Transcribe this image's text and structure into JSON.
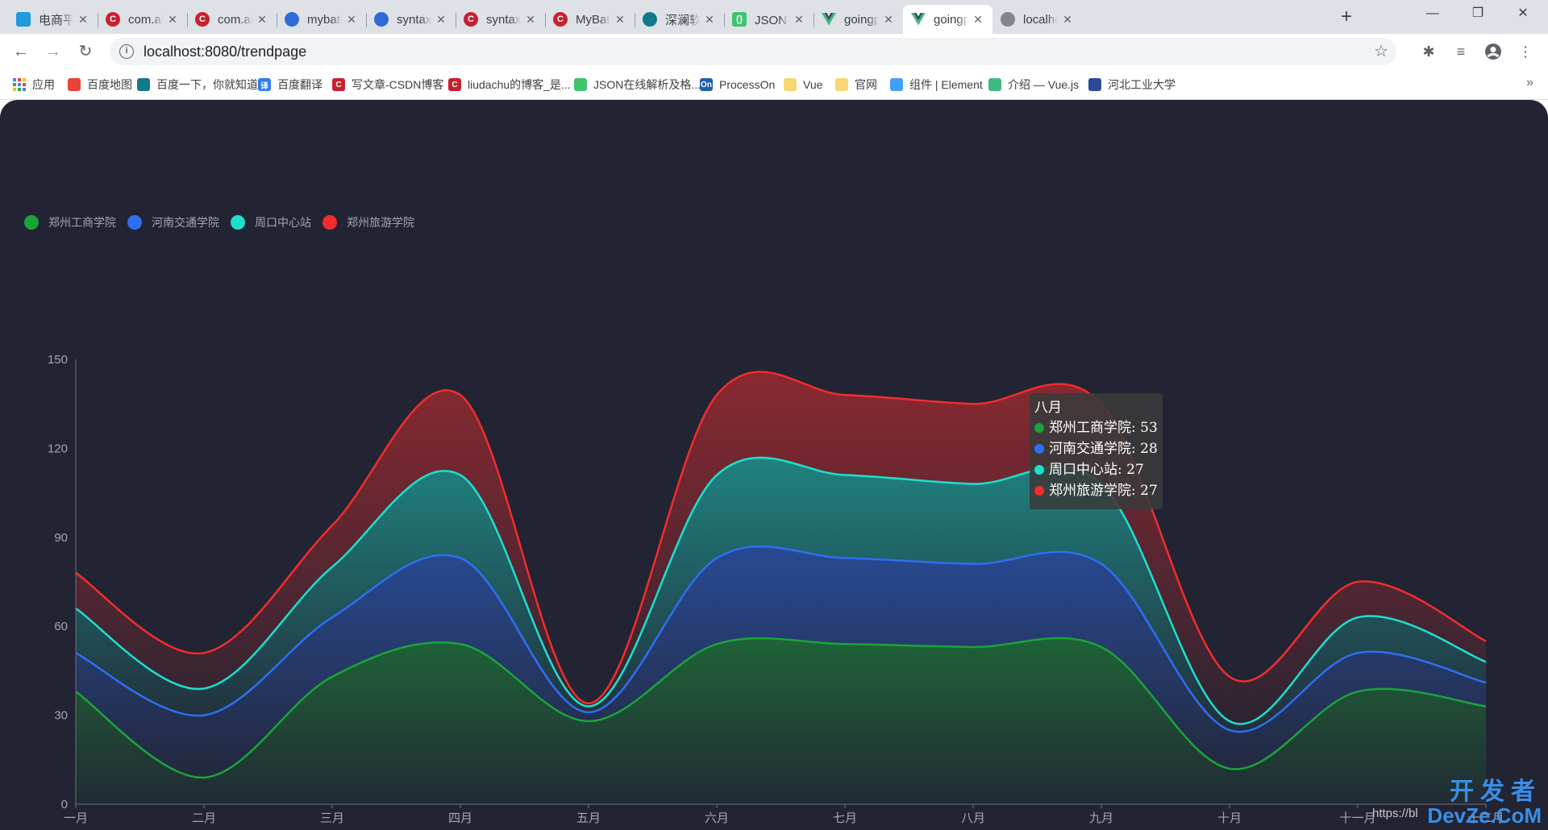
{
  "browser": {
    "tabs": [
      {
        "title": "电商平台",
        "icon": "bilibili-icon",
        "active": false
      },
      {
        "title": "com.ali",
        "icon": "csdn-icon",
        "active": false
      },
      {
        "title": "com.ali",
        "icon": "csdn-icon",
        "active": false
      },
      {
        "title": "mybatis",
        "icon": "baidu-icon",
        "active": false
      },
      {
        "title": "syntax",
        "icon": "baidu-icon",
        "active": false
      },
      {
        "title": "syntax",
        "icon": "csdn-icon",
        "active": false
      },
      {
        "title": "MyBatis",
        "icon": "csdn-icon",
        "active": false
      },
      {
        "title": "深澜软件",
        "icon": "deepblue-icon",
        "active": false
      },
      {
        "title": "JSON在",
        "icon": "json-icon",
        "active": false
      },
      {
        "title": "goingp",
        "icon": "vue-icon",
        "active": false
      },
      {
        "title": "goingp",
        "icon": "vue-icon",
        "active": true
      },
      {
        "title": "localho",
        "icon": "globe-icon",
        "active": false
      }
    ],
    "url": "localhost:8080/trendpage",
    "bookmarks": [
      {
        "label": "应用",
        "icon": "apps-icon"
      },
      {
        "label": "百度地图",
        "icon": "map-pin-icon"
      },
      {
        "label": "百度一下，你就知道",
        "icon": "deepblue-icon"
      },
      {
        "label": "百度翻译",
        "icon": "translate-icon"
      },
      {
        "label": "写文章-CSDN博客",
        "icon": "csdn-icon"
      },
      {
        "label": "liudachu的博客_是...",
        "icon": "csdn-icon"
      },
      {
        "label": "JSON在线解析及格...",
        "icon": "json-icon"
      },
      {
        "label": "ProcessOn",
        "icon": "processon-icon"
      },
      {
        "label": "Vue",
        "icon": "folder-icon"
      },
      {
        "label": "官网",
        "icon": "folder-icon"
      },
      {
        "label": "组件 | Element",
        "icon": "element-icon"
      },
      {
        "label": "介绍 — Vue.js",
        "icon": "vue-icon"
      },
      {
        "label": "河北工业大学",
        "icon": "university-icon"
      }
    ]
  },
  "chart_data": {
    "type": "area",
    "stacked": true,
    "smooth": true,
    "categories": [
      "一月",
      "二月",
      "三月",
      "四月",
      "五月",
      "六月",
      "七月",
      "八月",
      "九月",
      "十月",
      "十一月",
      "十二月"
    ],
    "series": [
      {
        "name": "郑州工商学院",
        "color": "#1aa33b",
        "values": [
          38,
          9,
          43,
          54,
          28,
          54,
          54,
          53,
          53,
          12,
          38,
          33
        ]
      },
      {
        "name": "河南交通学院",
        "color": "#2e6ff2",
        "values": [
          13,
          21,
          20,
          29,
          3,
          29,
          29,
          28,
          28,
          13,
          13,
          8
        ]
      },
      {
        "name": "周口中心站",
        "color": "#1ce0cc",
        "values": [
          15,
          9,
          17,
          28,
          2,
          28,
          28,
          27,
          27,
          3,
          12,
          7
        ]
      },
      {
        "name": "郑州旅游学院",
        "color": "#f22c2c",
        "values": [
          12,
          12,
          14,
          27,
          1,
          27,
          27,
          27,
          27,
          15,
          12,
          7
        ]
      }
    ],
    "y_ticks": [
      "0",
      "30",
      "60",
      "90",
      "120",
      "150"
    ],
    "ylim": [
      0,
      150
    ],
    "legend_position": "top-left",
    "grid": false,
    "tooltip": {
      "title": "八月",
      "rows": [
        {
          "label": "郑州工商学院: 53",
          "color": "#1aa33b"
        },
        {
          "label": "河南交通学院: 28",
          "color": "#2e6ff2"
        },
        {
          "label": "周口中心站: 27",
          "color": "#1ce0cc"
        },
        {
          "label": "郑州旅游学院: 27",
          "color": "#f22c2c"
        }
      ]
    }
  },
  "watermark": {
    "cn": "开发者",
    "en": "DevZe.CoM",
    "url": "https://bl"
  }
}
